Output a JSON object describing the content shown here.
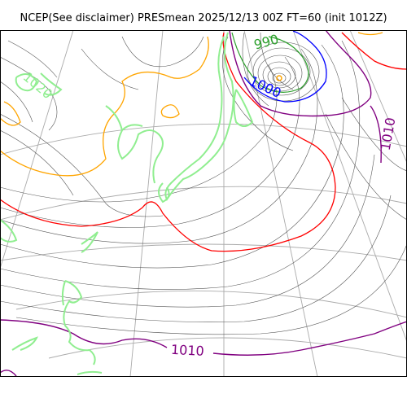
{
  "title": "NCEP(See disclaimer) PRESmean 2025/12/13 00Z FT=60 (init 1012Z)",
  "contour_labels": [
    {
      "id": "l990",
      "text": "990",
      "color": "#2ca02c"
    },
    {
      "id": "l1000",
      "text": "1000",
      "color": "#0000ff"
    },
    {
      "id": "l1010a",
      "text": "1010",
      "color": "#800080"
    },
    {
      "id": "l1010b",
      "text": "1010",
      "color": "#800080"
    },
    {
      "id": "l1020",
      "text": "1020",
      "color": "#90ee90"
    }
  ],
  "colors": {
    "coast": "#90ee90",
    "isobar_thin": "#555555",
    "isobar_990": "#2ca02c",
    "isobar_1000": "#0000ff",
    "isobar_1010": "#800080",
    "isobar_1013": "#ff0000",
    "isobar_1020": "#ffa500",
    "graticule": "#aaaaaa"
  }
}
